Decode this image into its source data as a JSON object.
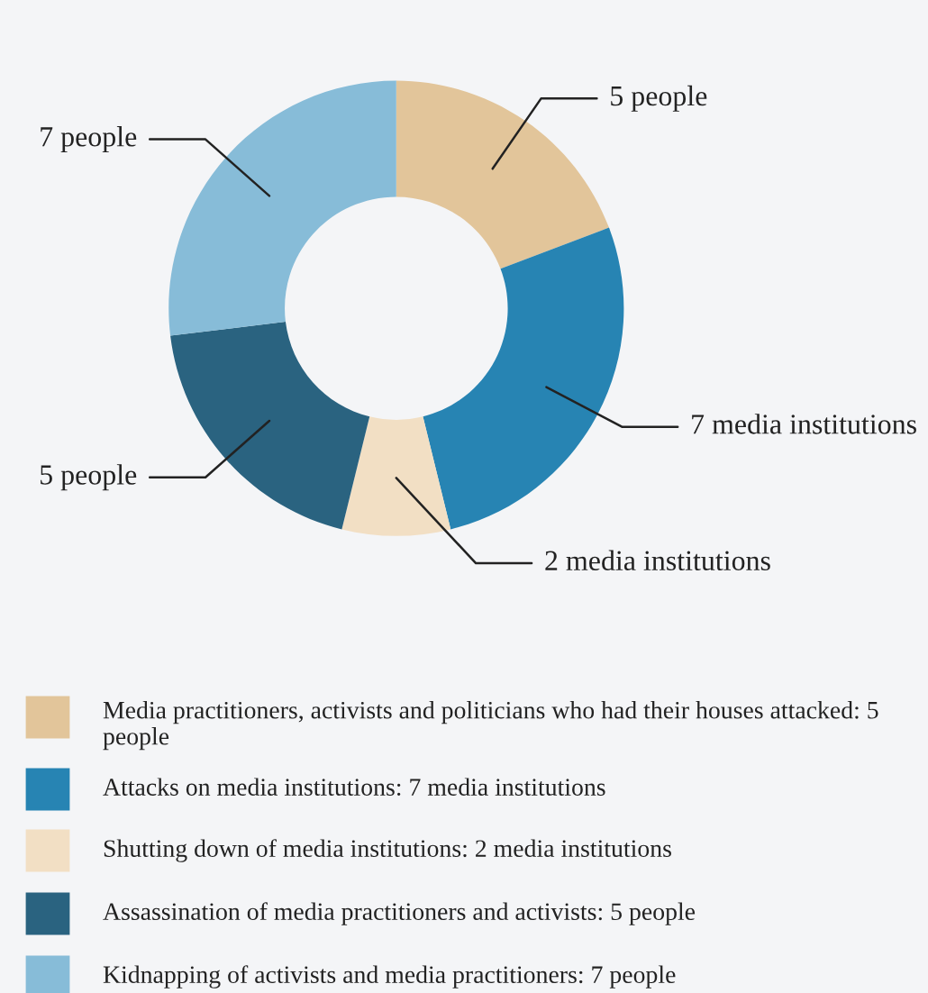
{
  "chart_data": {
    "type": "donut",
    "categories": [
      "Media practitioners, activists and politicians who had their houses attacked: 5 people",
      "Attacks on media institutions: 7 media institutions",
      "Shutting down of media institutions: 2 media institutions",
      "Assassination of media practitioners and activists: 5 people",
      "Kidnapping of activists and media practitioners: 7 people"
    ],
    "values": [
      5,
      7,
      2,
      5,
      7
    ],
    "value_labels": [
      "5 people",
      "7 media institutions",
      "2 media institutions",
      "5 people",
      "7 people"
    ],
    "colors": [
      "#e2c59a",
      "#2784b3",
      "#f2dfc4",
      "#2a6380",
      "#87bcd8"
    ],
    "legend": "bottom"
  }
}
